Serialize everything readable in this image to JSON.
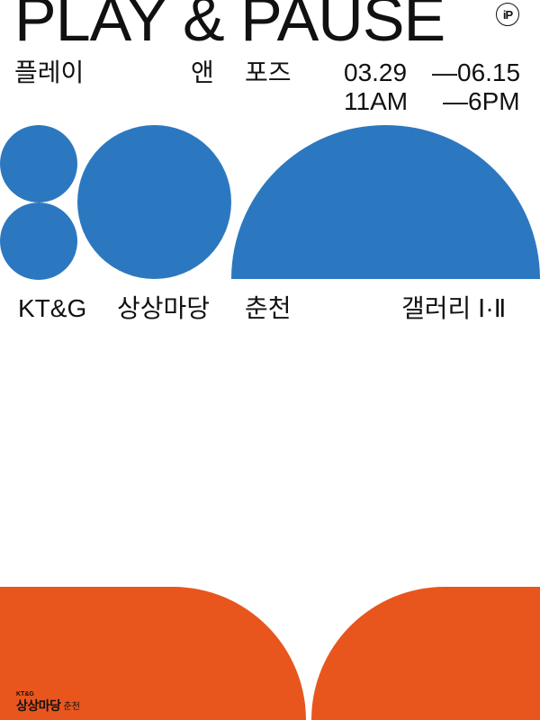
{
  "poster": {
    "title": "PLAY & PAUSE",
    "subtitle_ko": [
      "플레이",
      "앤",
      "포즈"
    ],
    "date_start": "03.29",
    "date_end": "—06.15",
    "time_start": "11AM",
    "time_end": "—6PM",
    "venue_brand": "KT&G",
    "venue_name": "상상마당",
    "venue_city": "춘천",
    "gallery": "갤러리 Ⅰ·Ⅱ",
    "corner_logo": "iP",
    "footer": {
      "brand_small": "KT&G",
      "brand_main": "상상마당",
      "city": "춘천"
    }
  },
  "colors": {
    "blue": "#2c78c0",
    "orange": "#e8561e",
    "text": "#111111",
    "background": "#ffffff"
  }
}
